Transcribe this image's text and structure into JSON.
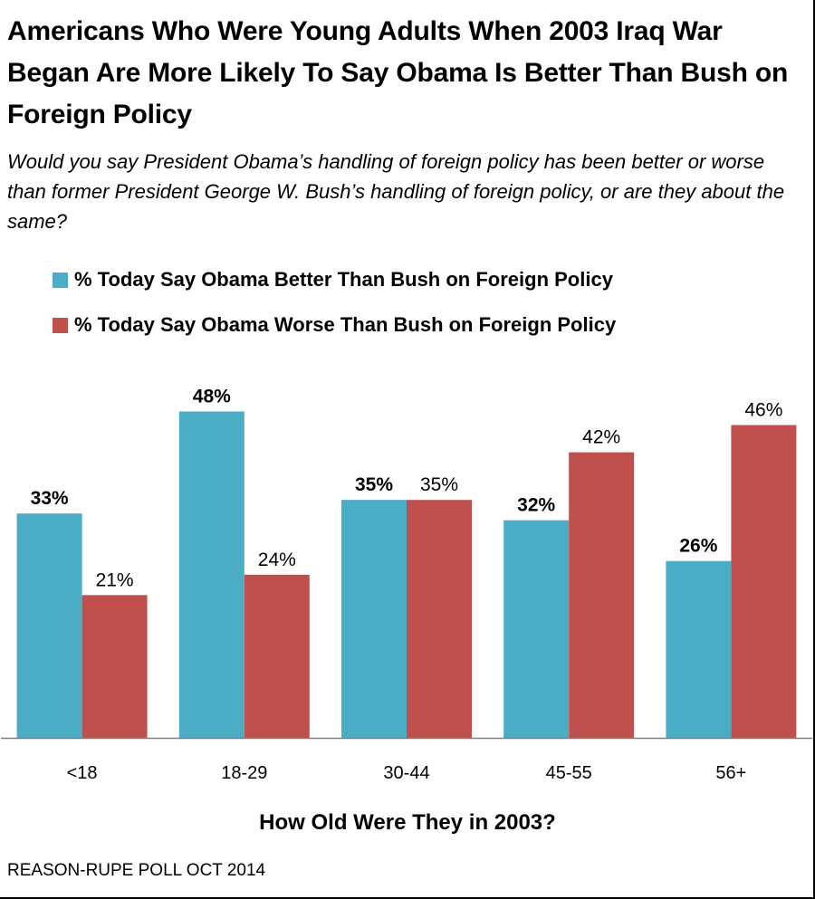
{
  "title": "Americans Who Were Young Adults When 2003 Iraq War Began Are More Likely To Say Obama Is Better Than Bush on Foreign Policy",
  "subtitle": "Would you say President Obama’s handling of foreign policy has been better or worse than former President George W. Bush’s handling of foreign policy, or are they about the same?",
  "source": "REASON-RUPE POLL OCT 2014",
  "colors": {
    "better": "#4bacc6",
    "worse": "#c0504d",
    "axis": "#808080"
  },
  "chart_data": {
    "type": "bar",
    "categories": [
      "<18",
      "18-29",
      "30-44",
      "45-55",
      "56+"
    ],
    "series": [
      {
        "name": "% Today Say Obama Better Than Bush on Foreign Policy",
        "values": [
          33,
          48,
          35,
          32,
          26
        ],
        "data_labels": [
          "33%",
          "48%",
          "35%",
          "32%",
          "26%"
        ],
        "color": "#4bacc6",
        "label_style": "bold"
      },
      {
        "name": "% Today Say Obama Worse Than Bush on Foreign Policy",
        "values": [
          21,
          24,
          35,
          42,
          46
        ],
        "data_labels": [
          "21%",
          "24%",
          "35%",
          "42%",
          "46%"
        ],
        "color": "#c0504d",
        "label_style": "normal"
      }
    ],
    "xlabel": "How Old Were They in 2003?",
    "ylabel": "",
    "ylim": [
      0,
      50
    ],
    "grid": false,
    "legend_position": "top-left"
  }
}
